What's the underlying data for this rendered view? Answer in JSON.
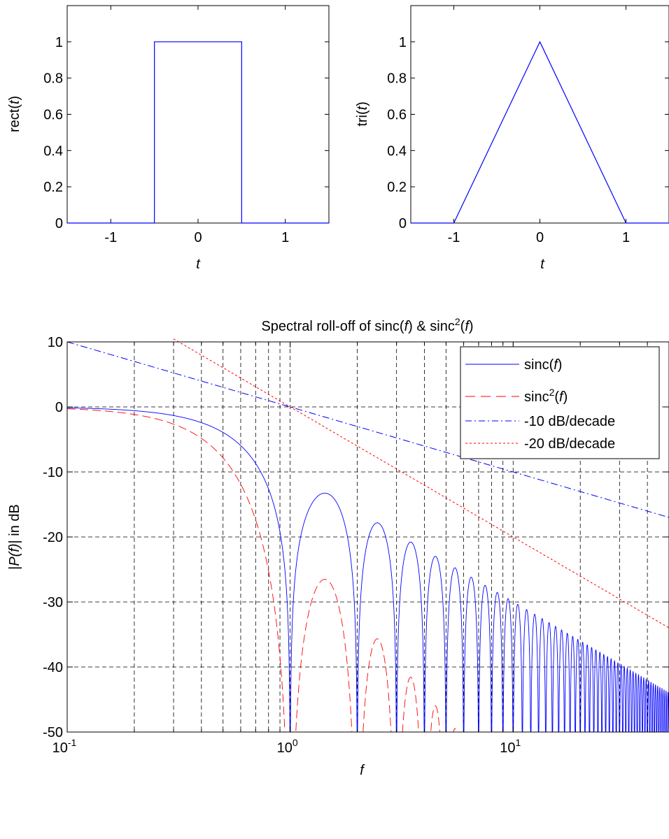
{
  "chart_data": [
    {
      "type": "line",
      "function": "rect",
      "xlabel": "t",
      "ylabel_base": "rect(",
      "ylabel_var": "t",
      "ylabel_close": ")",
      "xlim": [
        -1.5,
        1.5
      ],
      "ylim": [
        0,
        1.2
      ],
      "xticks": [
        -1,
        0,
        1
      ],
      "xtick_labels": [
        "-1",
        "0",
        "1"
      ],
      "yticks": [
        0,
        0.2,
        0.4,
        0.6,
        0.8,
        1
      ],
      "ytick_labels": [
        "0",
        "0.2",
        "0.4",
        "0.6",
        "0.8",
        "1"
      ],
      "grid": false,
      "color": "#0000ff",
      "series": [
        {
          "x": [
            -1.5,
            -0.5,
            -0.5,
            0.5,
            0.5,
            1.5
          ],
          "y": [
            0,
            0,
            1,
            1,
            0,
            0
          ]
        }
      ]
    },
    {
      "type": "line",
      "function": "tri",
      "xlabel": "t",
      "ylabel_base": "tri(",
      "ylabel_var": "t",
      "ylabel_close": ")",
      "xlim": [
        -1.5,
        1.5
      ],
      "ylim": [
        0,
        1.2
      ],
      "xticks": [
        -1,
        0,
        1
      ],
      "xtick_labels": [
        "-1",
        "0",
        "1"
      ],
      "yticks": [
        0,
        0.2,
        0.4,
        0.6,
        0.8,
        1
      ],
      "ytick_labels": [
        "0",
        "0.2",
        "0.4",
        "0.6",
        "0.8",
        "1"
      ],
      "grid": false,
      "color": "#0000ff",
      "series": [
        {
          "x": [
            -1.5,
            -1,
            0,
            1,
            1.5
          ],
          "y": [
            0,
            0,
            1,
            0,
            0
          ]
        }
      ]
    },
    {
      "type": "line",
      "xscale": "log",
      "title_pre": "Spectral roll-off of sinc(",
      "title_var1": "f",
      "title_mid": ") & sinc",
      "title_sup": "2",
      "title_open": "(",
      "title_var2": "f",
      "title_close": ")",
      "xlabel": "f",
      "ylabel_pre": "|",
      "ylabel_var": "P(f)",
      "ylabel_post": "| in dB",
      "xlim": [
        0.1,
        50
      ],
      "ylim": [
        -50,
        10
      ],
      "xticks_major": [
        0.1,
        1,
        10
      ],
      "xtick_base": "10",
      "xtick_exponents": [
        "-1",
        "0",
        "1"
      ],
      "yticks": [
        -50,
        -40,
        -30,
        -20,
        -10,
        0,
        10
      ],
      "ytick_labels": [
        "-50",
        "-40",
        "-30",
        "-20",
        "-10",
        "0",
        "10"
      ],
      "grid": true,
      "legend_position": "top-right",
      "series": [
        {
          "name_base": "sinc(",
          "name_var": "f",
          "name_sup": "",
          "name_close": ")",
          "formula": "20*log10(|sinc(f)|)",
          "color": "#0000ff",
          "dash": "solid"
        },
        {
          "name_base": "sinc",
          "name_var": "f",
          "name_sup": "2",
          "name_close": ")",
          "formula": "40*log10(|sinc(f)|)",
          "color": "#ff0000",
          "dash": "long-dash"
        },
        {
          "name_base": "-10 dB/decade",
          "name_var": "",
          "name_sup": "",
          "name_close": "",
          "x": [
            0.1,
            50
          ],
          "y": [
            10,
            -16.99
          ],
          "color": "#0000ff",
          "dash": "dash-dot"
        },
        {
          "name_base": "-20 dB/decade",
          "name_var": "",
          "name_sup": "",
          "name_close": "",
          "x": [
            0.3,
            50
          ],
          "y": [
            10.46,
            -33.98
          ],
          "color": "#ff0000",
          "dash": "dotted"
        }
      ]
    }
  ]
}
